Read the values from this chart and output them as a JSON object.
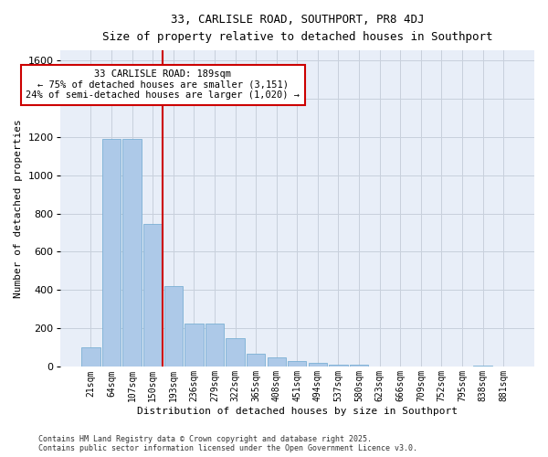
{
  "title1": "33, CARLISLE ROAD, SOUTHPORT, PR8 4DJ",
  "title2": "Size of property relative to detached houses in Southport",
  "xlabel": "Distribution of detached houses by size in Southport",
  "ylabel": "Number of detached properties",
  "categories": [
    "21sqm",
    "64sqm",
    "107sqm",
    "150sqm",
    "193sqm",
    "236sqm",
    "279sqm",
    "322sqm",
    "365sqm",
    "408sqm",
    "451sqm",
    "494sqm",
    "537sqm",
    "580sqm",
    "623sqm",
    "666sqm",
    "709sqm",
    "752sqm",
    "795sqm",
    "838sqm",
    "881sqm"
  ],
  "values": [
    100,
    1190,
    1190,
    745,
    420,
    228,
    225,
    150,
    68,
    50,
    32,
    22,
    12,
    10,
    0,
    0,
    0,
    0,
    0,
    5,
    0
  ],
  "bar_color": "#adc9e8",
  "bar_edge_color": "#7aafd4",
  "vline_color": "#cc0000",
  "annotation_line1": "33 CARLISLE ROAD: 189sqm",
  "annotation_line2": "← 75% of detached houses are smaller (3,151)",
  "annotation_line3": "24% of semi-detached houses are larger (1,020) →",
  "annotation_box_color": "#cc0000",
  "ylim": [
    0,
    1650
  ],
  "yticks": [
    0,
    200,
    400,
    600,
    800,
    1000,
    1200,
    1400,
    1600
  ],
  "grid_color": "#c8d0dc",
  "bg_color": "#e8eef8",
  "fig_color": "#ffffff",
  "footer1": "Contains HM Land Registry data © Crown copyright and database right 2025.",
  "footer2": "Contains public sector information licensed under the Open Government Licence v3.0."
}
